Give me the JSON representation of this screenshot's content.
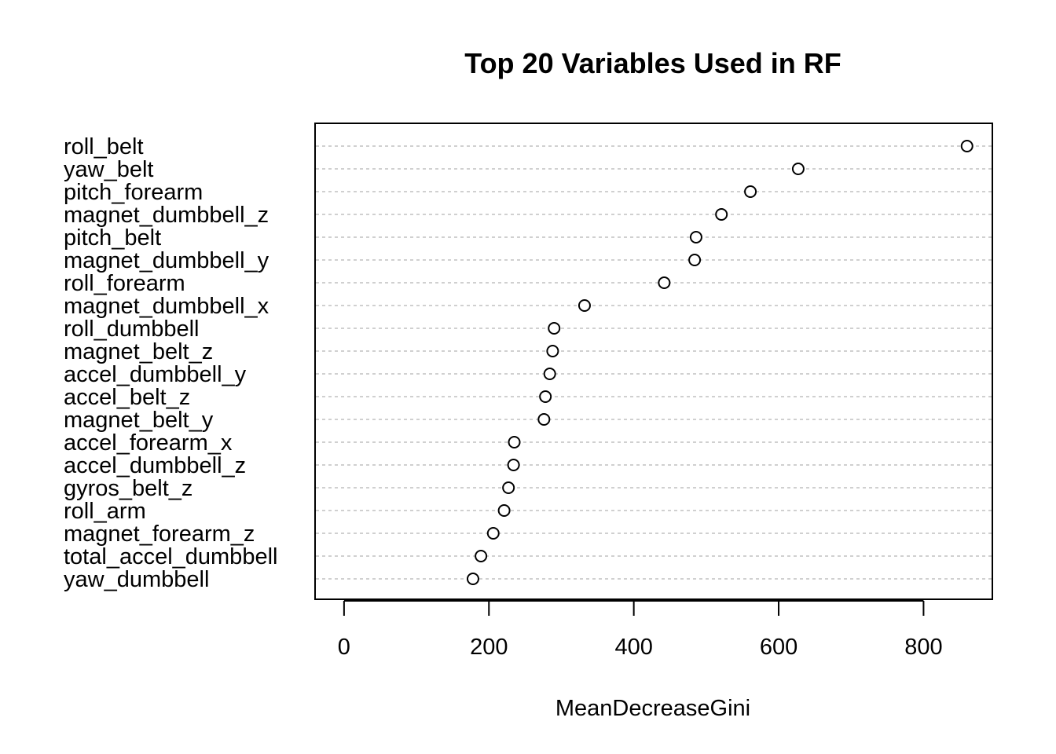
{
  "chart_data": {
    "type": "scatter",
    "subtype": "dotchart",
    "title": "Top 20 Variables Used in RF",
    "xlabel": "MeanDecreaseGini",
    "ylabel": "",
    "xlim": [
      -40,
      895
    ],
    "xticks": [
      0,
      200,
      400,
      600,
      800
    ],
    "grid": "horizontal dotted lines per category",
    "legend": "none",
    "marker": "open circle",
    "colors": {
      "point_stroke": "#000000",
      "point_fill": "#ffffff",
      "grid": "#b4b4b4",
      "frame": "#000000"
    },
    "categories": [
      "roll_belt",
      "yaw_belt",
      "pitch_forearm",
      "magnet_dumbbell_z",
      "pitch_belt",
      "magnet_dumbbell_y",
      "roll_forearm",
      "magnet_dumbbell_x",
      "roll_dumbbell",
      "magnet_belt_z",
      "accel_dumbbell_y",
      "accel_belt_z",
      "magnet_belt_y",
      "accel_forearm_x",
      "accel_dumbbell_z",
      "gyros_belt_z",
      "roll_arm",
      "magnet_forearm_z",
      "total_accel_dumbbell",
      "yaw_dumbbell"
    ],
    "values": [
      860,
      627,
      561,
      521,
      486,
      484,
      442,
      332,
      290,
      288,
      284,
      278,
      276,
      235,
      234,
      227,
      221,
      206,
      189,
      178
    ]
  }
}
